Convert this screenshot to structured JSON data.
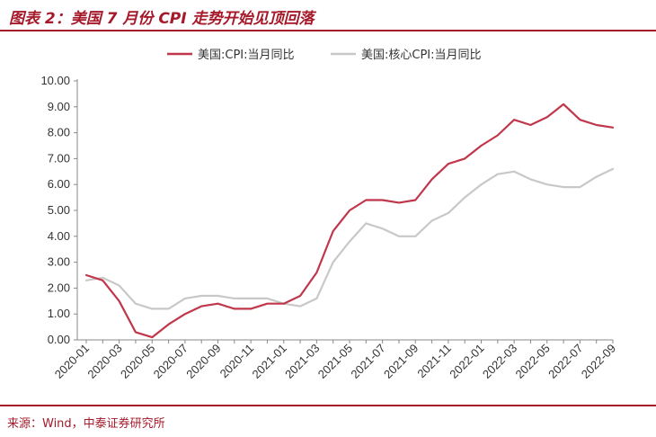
{
  "header": {
    "title": "图表 2：美国 7 月份 CPI 走势开始见顶回落"
  },
  "footer": {
    "source": "来源：Wind，中泰证券研究所"
  },
  "colors": {
    "accent": "#a5192a",
    "series1": "#c0364a",
    "series2": "#c8c8c8"
  },
  "chart_data": {
    "type": "line",
    "title": "",
    "xlabel": "",
    "ylabel": "",
    "ylim": [
      0,
      10
    ],
    "yticks": [
      "0.00",
      "1.00",
      "2.00",
      "3.00",
      "4.00",
      "5.00",
      "6.00",
      "7.00",
      "8.00",
      "9.00",
      "10.00"
    ],
    "x": [
      "2020-01",
      "2020-02",
      "2020-03",
      "2020-04",
      "2020-05",
      "2020-06",
      "2020-07",
      "2020-08",
      "2020-09",
      "2020-10",
      "2020-11",
      "2020-12",
      "2021-01",
      "2021-02",
      "2021-03",
      "2021-04",
      "2021-05",
      "2021-06",
      "2021-07",
      "2021-08",
      "2021-09",
      "2021-10",
      "2021-11",
      "2021-12",
      "2022-01",
      "2022-02",
      "2022-03",
      "2022-04",
      "2022-05",
      "2022-06",
      "2022-07",
      "2022-08",
      "2022-09"
    ],
    "xtick_labels": [
      "2020-01",
      "2020-03",
      "2020-05",
      "2020-07",
      "2020-09",
      "2020-11",
      "2021-01",
      "2021-03",
      "2021-05",
      "2021-07",
      "2021-09",
      "2021-11",
      "2022-01",
      "2022-03",
      "2022-05",
      "2022-07",
      "2022-09"
    ],
    "series": [
      {
        "name": "美国:CPI:当月同比",
        "values": [
          2.5,
          2.3,
          1.5,
          0.3,
          0.1,
          0.6,
          1.0,
          1.3,
          1.4,
          1.2,
          1.2,
          1.4,
          1.4,
          1.7,
          2.6,
          4.2,
          5.0,
          5.4,
          5.4,
          5.3,
          5.4,
          6.2,
          6.8,
          7.0,
          7.5,
          7.9,
          8.5,
          8.3,
          8.6,
          9.1,
          8.5,
          8.3,
          8.2
        ]
      },
      {
        "name": "美国:核心CPI:当月同比",
        "values": [
          2.3,
          2.4,
          2.1,
          1.4,
          1.2,
          1.2,
          1.6,
          1.7,
          1.7,
          1.6,
          1.6,
          1.6,
          1.4,
          1.3,
          1.6,
          3.0,
          3.8,
          4.5,
          4.3,
          4.0,
          4.0,
          4.6,
          4.9,
          5.5,
          6.0,
          6.4,
          6.5,
          6.2,
          6.0,
          5.9,
          5.9,
          6.3,
          6.6
        ]
      }
    ],
    "grid": false,
    "legend": "top-center"
  }
}
